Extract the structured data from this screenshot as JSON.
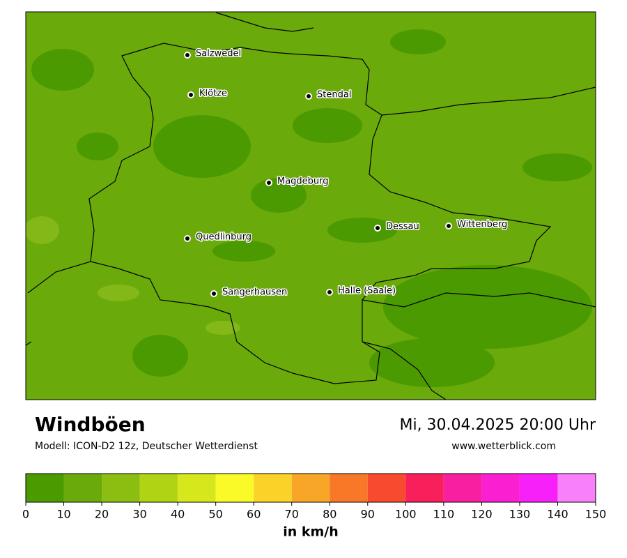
{
  "title": "Windböen",
  "subtitle": "Modell: ICON-D2 12z, Deutscher Wetterdienst",
  "datetime": "Mi, 30.04.2025 20:00 Uhr",
  "website": "www.wetterblick.com",
  "cities": [
    "Salzwedel",
    "Klötze",
    "Stendal",
    "Magdeburg",
    "Dessau",
    "Wittenberg",
    "Quedlinburg",
    "Sangerhausen",
    "Halle (Saale)"
  ],
  "colorbar": {
    "ticks": [
      0,
      10,
      20,
      30,
      40,
      50,
      60,
      70,
      80,
      90,
      100,
      110,
      120,
      130,
      140,
      150
    ],
    "colors": [
      "#4a9a00",
      "#6aaa0a",
      "#8cbe12",
      "#b0d414",
      "#d6e81c",
      "#fafa28",
      "#fad228",
      "#f8a628",
      "#f87828",
      "#f84a2e",
      "#f8205a",
      "#f820a0",
      "#f820d0",
      "#f820f8",
      "#f880f8"
    ],
    "unit": "in km/h"
  }
}
